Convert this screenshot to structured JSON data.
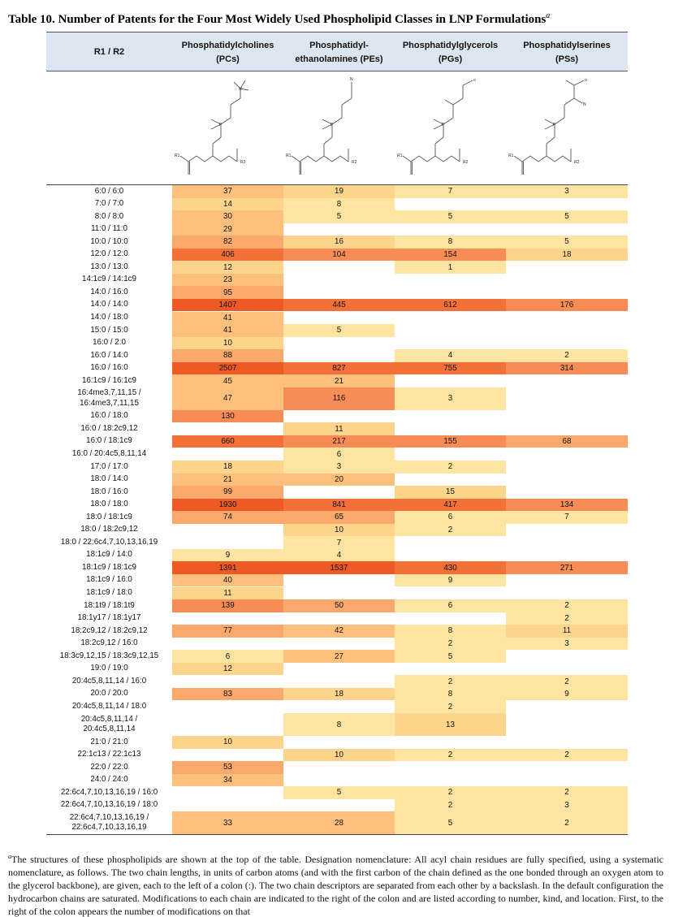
{
  "title": "Table 10. Number of Patents for the Four Most Widely Used Phospholipid Classes in LNP Formulations",
  "title_sup": "a",
  "headers": {
    "r": "R1 / R2",
    "pc1": "Phosphatidylcholines",
    "pc2": "(PCs)",
    "pe1": "Phosphatidyl-",
    "pe2": "ethanolamines (PEs)",
    "pg1": "Phosphatidylglycerols",
    "pg2": "(PGs)",
    "ps1": "Phosphatidylserines",
    "ps2": "(PSs)"
  },
  "structure_labels": {
    "r1": "R1",
    "r2": "R2",
    "o": "o",
    "p": "P",
    "n": "N"
  },
  "rows": [
    {
      "label": [
        "6:0 / 6:0"
      ],
      "pc": "37",
      "pe": "19",
      "pg": "7",
      "ps": "3"
    },
    {
      "label": [
        "7:0 / 7:0"
      ],
      "pc": "14",
      "pe": "8",
      "pg": "",
      "ps": ""
    },
    {
      "label": [
        "8:0 / 8:0"
      ],
      "pc": "30",
      "pe": "5",
      "pg": "5",
      "ps": "5"
    },
    {
      "label": [
        "11:0 / 11:0"
      ],
      "pc": "29",
      "pe": "",
      "pg": "",
      "ps": ""
    },
    {
      "label": [
        "10:0 / 10:0"
      ],
      "pc": "82",
      "pe": "16",
      "pg": "8",
      "ps": "5"
    },
    {
      "label": [
        "12:0 / 12:0"
      ],
      "pc": "406",
      "pe": "104",
      "pg": "154",
      "ps": "18"
    },
    {
      "label": [
        "13:0 / 13:0"
      ],
      "pc": "12",
      "pe": "",
      "pg": "1",
      "ps": ""
    },
    {
      "label": [
        "14:1c9 / 14:1c9"
      ],
      "pc": "23",
      "pe": "",
      "pg": "",
      "ps": ""
    },
    {
      "label": [
        "14:0 / 16:0"
      ],
      "pc": "95",
      "pe": "",
      "pg": "",
      "ps": ""
    },
    {
      "label": [
        "14:0 / 14:0"
      ],
      "pc": "1407",
      "pe": "445",
      "pg": "612",
      "ps": "176"
    },
    {
      "label": [
        "14:0 / 18:0"
      ],
      "pc": "41",
      "pe": "",
      "pg": "",
      "ps": ""
    },
    {
      "label": [
        "15:0 / 15:0"
      ],
      "pc": "41",
      "pe": "5",
      "pg": "",
      "ps": ""
    },
    {
      "label": [
        "16:0 / 2:0"
      ],
      "pc": "10",
      "pe": "",
      "pg": "",
      "ps": ""
    },
    {
      "label": [
        "16:0 / 14:0"
      ],
      "pc": "88",
      "pe": "",
      "pg": "4",
      "ps": "2"
    },
    {
      "label": [
        "16:0 / 16:0"
      ],
      "pc": "2507",
      "pe": "827",
      "pg": "755",
      "ps": "314"
    },
    {
      "label": [
        "16:1c9 / 16:1c9"
      ],
      "pc": "45",
      "pe": "21",
      "pg": "",
      "ps": ""
    },
    {
      "label": [
        "16:4me3,7,11,15 /",
        "16:4me3,7,11,15"
      ],
      "pc": "47",
      "pe": "116",
      "pg": "3",
      "ps": ""
    },
    {
      "label": [
        "16:0 / 18:0"
      ],
      "pc": "130",
      "pe": "",
      "pg": "",
      "ps": ""
    },
    {
      "label": [
        "16:0 / 18:2c9,12"
      ],
      "pc": "",
      "pe": "11",
      "pg": "",
      "ps": ""
    },
    {
      "label": [
        "16:0 / 18:1c9"
      ],
      "pc": "660",
      "pe": "217",
      "pg": "155",
      "ps": "68"
    },
    {
      "label": [
        "16:0 / 20:4c5,8,11,14"
      ],
      "pc": "",
      "pe": "6",
      "pg": "",
      "ps": ""
    },
    {
      "label": [
        "17:0 / 17:0"
      ],
      "pc": "18",
      "pe": "3",
      "pg": "2",
      "ps": ""
    },
    {
      "label": [
        "18:0 / 14:0"
      ],
      "pc": "21",
      "pe": "20",
      "pg": "",
      "ps": ""
    },
    {
      "label": [
        "18:0 / 16:0"
      ],
      "pc": "99",
      "pe": "",
      "pg": "15",
      "ps": ""
    },
    {
      "label": [
        "18:0 / 18:0"
      ],
      "pc": "1930",
      "pe": "841",
      "pg": "417",
      "ps": "134"
    },
    {
      "label": [
        "18:0 / 18:1c9"
      ],
      "pc": "74",
      "pe": "65",
      "pg": "6",
      "ps": "7"
    },
    {
      "label": [
        "18:0 / 18:2c9,12"
      ],
      "pc": "",
      "pe": "10",
      "pg": "2",
      "ps": ""
    },
    {
      "label": [
        "18:0 / 22:6c4,7,10,13,16,19"
      ],
      "pc": "",
      "pe": "7",
      "pg": "",
      "ps": ""
    },
    {
      "label": [
        "18:1c9 / 14:0"
      ],
      "pc": "9",
      "pe": "4",
      "pg": "",
      "ps": ""
    },
    {
      "label": [
        "18:1c9 / 18:1c9"
      ],
      "pc": "1391",
      "pe": "1537",
      "pg": "430",
      "ps": "271"
    },
    {
      "label": [
        "18:1c9 / 16:0"
      ],
      "pc": "40",
      "pe": "",
      "pg": "9",
      "ps": ""
    },
    {
      "label": [
        "18:1c9 / 18:0"
      ],
      "pc": "11",
      "pe": "",
      "pg": "",
      "ps": ""
    },
    {
      "label": [
        "18:1t9 / 18:1t9"
      ],
      "pc": "139",
      "pe": "50",
      "pg": "6",
      "ps": "2"
    },
    {
      "label": [
        "18:1y17 / 18:1y17"
      ],
      "pc": "",
      "pe": "",
      "pg": "",
      "ps": "2"
    },
    {
      "label": [
        "18:2c9,12 / 18:2c9,12"
      ],
      "pc": "77",
      "pe": "42",
      "pg": "8",
      "ps": "11"
    },
    {
      "label": [
        "18:2c9,12 / 16:0"
      ],
      "pc": "",
      "pe": "",
      "pg": "2",
      "ps": "3"
    },
    {
      "label": [
        "18:3c9,12,15 / 18:3c9,12,15"
      ],
      "pc": "6",
      "pe": "27",
      "pg": "5",
      "ps": ""
    },
    {
      "label": [
        "19:0 / 19:0"
      ],
      "pc": "12",
      "pe": "",
      "pg": "",
      "ps": ""
    },
    {
      "label": [
        "20:4c5,8,11,14 / 16:0"
      ],
      "pc": "",
      "pe": "",
      "pg": "2",
      "ps": "2"
    },
    {
      "label": [
        "20:0 / 20:0"
      ],
      "pc": "83",
      "pe": "18",
      "pg": "8",
      "ps": "9"
    },
    {
      "label": [
        "20:4c5,8,11,14 / 18:0"
      ],
      "pc": "",
      "pe": "",
      "pg": "2",
      "ps": ""
    },
    {
      "label": [
        "20:4c5,8,11,14 /",
        "20:4c5,8,11,14"
      ],
      "pc": "",
      "pe": "8",
      "pg": "13",
      "ps": ""
    },
    {
      "label": [
        "21:0 / 21:0"
      ],
      "pc": "10",
      "pe": "",
      "pg": "",
      "ps": ""
    },
    {
      "label": [
        "22:1c13 / 22:1c13"
      ],
      "pc": "",
      "pe": "10",
      "pg": "2",
      "ps": "2"
    },
    {
      "label": [
        "22:0 / 22:0"
      ],
      "pc": "53",
      "pe": "",
      "pg": "",
      "ps": ""
    },
    {
      "label": [
        "24:0 / 24:0"
      ],
      "pc": "34",
      "pe": "",
      "pg": "",
      "ps": ""
    },
    {
      "label": [
        "22:6c4,7,10,13,16,19 / 16:0"
      ],
      "pc": "",
      "pe": "5",
      "pg": "2",
      "ps": "2"
    },
    {
      "label": [
        "22:6c4,7,10,13,16,19 / 18:0"
      ],
      "pc": "",
      "pe": "",
      "pg": "2",
      "ps": "3"
    },
    {
      "label": [
        "22:6c4,7,10,13,16,19 /",
        "22:6c4,7,10,13,16,19"
      ],
      "pc": "33",
      "pe": "28",
      "pg": "5",
      "ps": "2"
    }
  ],
  "footnote_sup": "a",
  "footnote": "The structures of these phospholipids are shown at the top of the table. Designation nomenclature: All acyl chain residues are fully specified, using a systematic nomenclature, as follows. The two chain lengths, in units of carbon atoms (and with the first carbon of the chain defined as the one bonded through an oxygen atom to the glycerol backbone), are given, each to the left of a colon (:). The two chain descriptors are separated from each other by a backslash. In the default configuration the hydrocarbon chains are saturated. Modifications to each chain are indicated to the right of the colon and are listed according to number, kind, and location. First, to the right of the colon appears the number of modifications on that",
  "colors": {
    "header_bg": "#dce6f1",
    "scale": [
      "#fde5a1",
      "#fdd48c",
      "#fcc07c",
      "#faa86b",
      "#f78d55",
      "#f37039",
      "#ee5a24"
    ]
  }
}
